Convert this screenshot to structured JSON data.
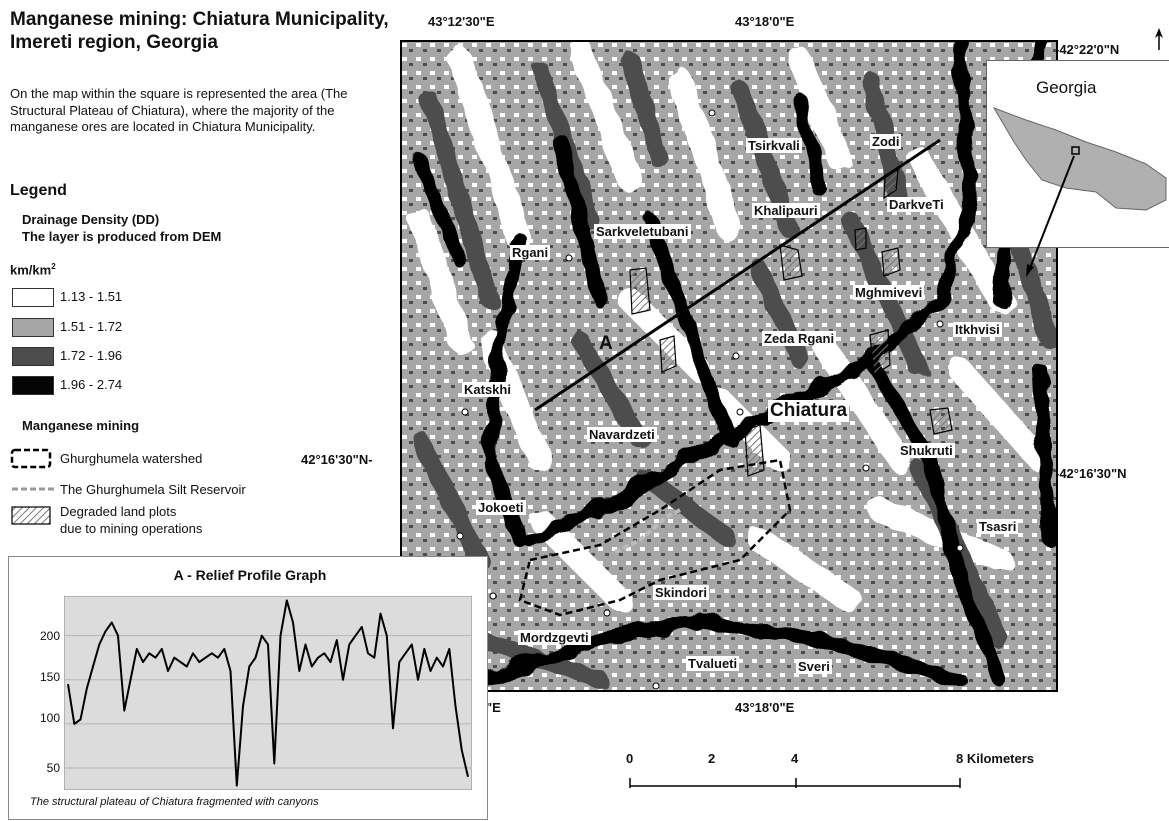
{
  "title": "Manganese mining: Chiatura Municipality, Imereti region, Georgia",
  "description": "On the map within the square is represented the area (The Structural Plateau of Chiatura), where the majority of the manganese ores are located in Chiatura Municipality.",
  "legend": {
    "title": "Legend",
    "drainage_title_line1": "Drainage Density (DD)",
    "drainage_title_line2": "The layer is produced from DEM",
    "unit": "km/km",
    "unit_sup": "2",
    "classes": [
      {
        "label": "1.13 - 1.51",
        "color": "#ffffff"
      },
      {
        "label": "1.51 - 1.72",
        "color": "#a6a6a6"
      },
      {
        "label": "1.72 - 1.96",
        "color": "#4d4d4d"
      },
      {
        "label": "1.96 - 2.74",
        "color": "#050505"
      }
    ],
    "mining_title": "Manganese mining",
    "watershed": "Ghurghumela watershed",
    "reservoir": "The Ghurghumela Silt Reservoir",
    "degraded_line1": "Degraded land plots",
    "degraded_line2": "due to mining operations"
  },
  "coordinates": {
    "top_left": "43°12'30\"E",
    "top_mid": "43°18'0\"E",
    "right_top": "-42°22'0\"N",
    "left_mid": "42°16'30\"N-",
    "right_mid": "-42°16'30\"N",
    "bottom_left": "\"E",
    "bottom_mid": "43°18'0\"E"
  },
  "places": {
    "tsirkvali": "Tsirkvali",
    "zodi": "Zodi",
    "khalipauri": "Khalipauri",
    "darkveti": "DarkveTi",
    "sarkveletubani": "Sarkveletubani",
    "rgani": "Rgani",
    "mghmivevi": "Mghmivevi",
    "itkhvisi": "Itkhvisi",
    "zeda_rgani": "Zeda Rgani",
    "profile_a": "A",
    "katskhi": "Katskhi",
    "chiatura": "Chiatura",
    "navardzeti": "Navardzeti",
    "shukruti": "Shukruti",
    "jokoeti": "Jokoeti",
    "tsasri": "Tsasri",
    "skindori": "Skindori",
    "mordzgevti": "Mordzgevti",
    "tvalueti": "Tvalueti",
    "sveri": "Sveri"
  },
  "inset": {
    "title": "Georgia"
  },
  "scale_bar": {
    "labels": [
      "0",
      "2",
      "4",
      "8 Kilometers"
    ]
  },
  "colors": {
    "map_light": "#ffffff",
    "map_mid": "#a6a6a6",
    "map_dark": "#4d4d4d",
    "map_black": "#050505",
    "graph_bg": "#dcdcdc"
  },
  "chart_data": {
    "type": "line",
    "title": "A - Relief Profile Graph",
    "caption": "The structural plateau of Chiatura fragmented with canyons",
    "xlabel": "",
    "ylabel": "",
    "yticks": [
      50,
      100,
      150,
      200
    ],
    "ylim": [
      25,
      245
    ],
    "series": [
      {
        "values": [
          145,
          100,
          105,
          140,
          165,
          190,
          205,
          215,
          200,
          115,
          150,
          185,
          170,
          180,
          175,
          185,
          160,
          175,
          170,
          165,
          180,
          170,
          175,
          180,
          175,
          185,
          160,
          30,
          120,
          165,
          175,
          200,
          190,
          55,
          200,
          240,
          215,
          160,
          190,
          165,
          175,
          180,
          170,
          195,
          150,
          190,
          200,
          210,
          180,
          175,
          225,
          200,
          95,
          170,
          180,
          190,
          150,
          185,
          160,
          175,
          165,
          185,
          120,
          70,
          40
        ]
      }
    ]
  }
}
